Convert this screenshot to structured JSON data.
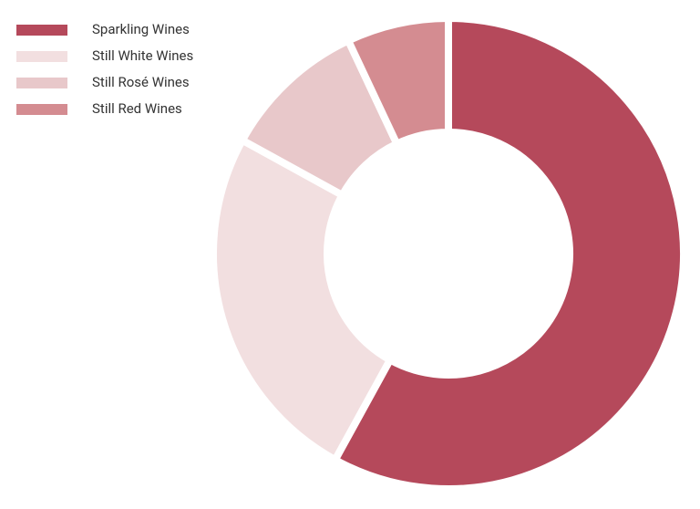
{
  "chart_data": {
    "type": "pie",
    "donut": true,
    "categories": [
      "Sparkling Wines",
      "Still White Wines",
      "Still Rosé Wines",
      "Still Red Wines"
    ],
    "values": [
      58,
      25,
      10,
      7
    ],
    "colors": [
      "#b5495b",
      "#f2dfe0",
      "#e8c8ca",
      "#d48c91"
    ],
    "legend": "top-left"
  }
}
